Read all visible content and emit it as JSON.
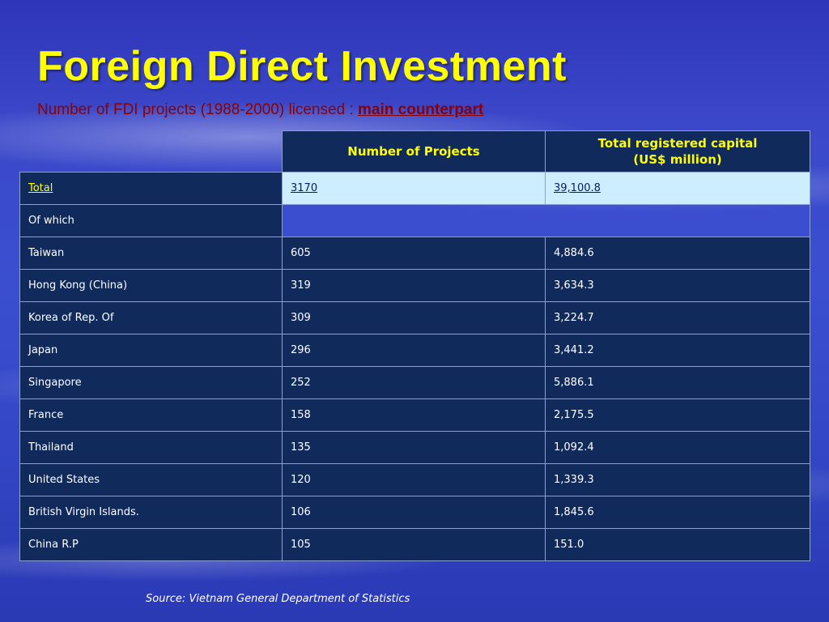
{
  "title": "Foreign Direct Investment",
  "subtitle": {
    "text": "Number of FDI projects (1988-2000) licensed : ",
    "highlight": "main counterpart"
  },
  "table": {
    "headers": {
      "projects": "Number of Projects",
      "capital_line1": "Total registered capital",
      "capital_line2": "(US$ million)"
    },
    "total": {
      "label": "Total",
      "projects": "3170",
      "capital": "39,100.8"
    },
    "of_which": "Of which",
    "rows": [
      {
        "country": "Taiwan",
        "projects": "605",
        "capital": "4,884.6"
      },
      {
        "country": "Hong Kong (China)",
        "projects": "319",
        "capital": "3,634.3"
      },
      {
        "country": "Korea of Rep. Of",
        "projects": "309",
        "capital": "3,224.7"
      },
      {
        "country": "Japan",
        "projects": "296",
        "capital": "3,441.2"
      },
      {
        "country": "Singapore",
        "projects": "252",
        "capital": "5,886.1"
      },
      {
        "country": "France",
        "projects": "158",
        "capital": "2,175.5"
      },
      {
        "country": "Thailand",
        "projects": "135",
        "capital": "1,092.4"
      },
      {
        "country": "United States",
        "projects": "120",
        "capital": "1,339.3"
      },
      {
        "country": "British Virgin Islands.",
        "projects": "106",
        "capital": "1,845.6"
      },
      {
        "country": "China R.P",
        "projects": "105",
        "capital": "151.0"
      }
    ]
  },
  "source": "Source: Vietnam General Department of Statistics",
  "colors": {
    "title": "#ffff00",
    "subtitle": "#8b0000",
    "header_bg": "#102a5c",
    "total_bg": "#cdeeff"
  }
}
